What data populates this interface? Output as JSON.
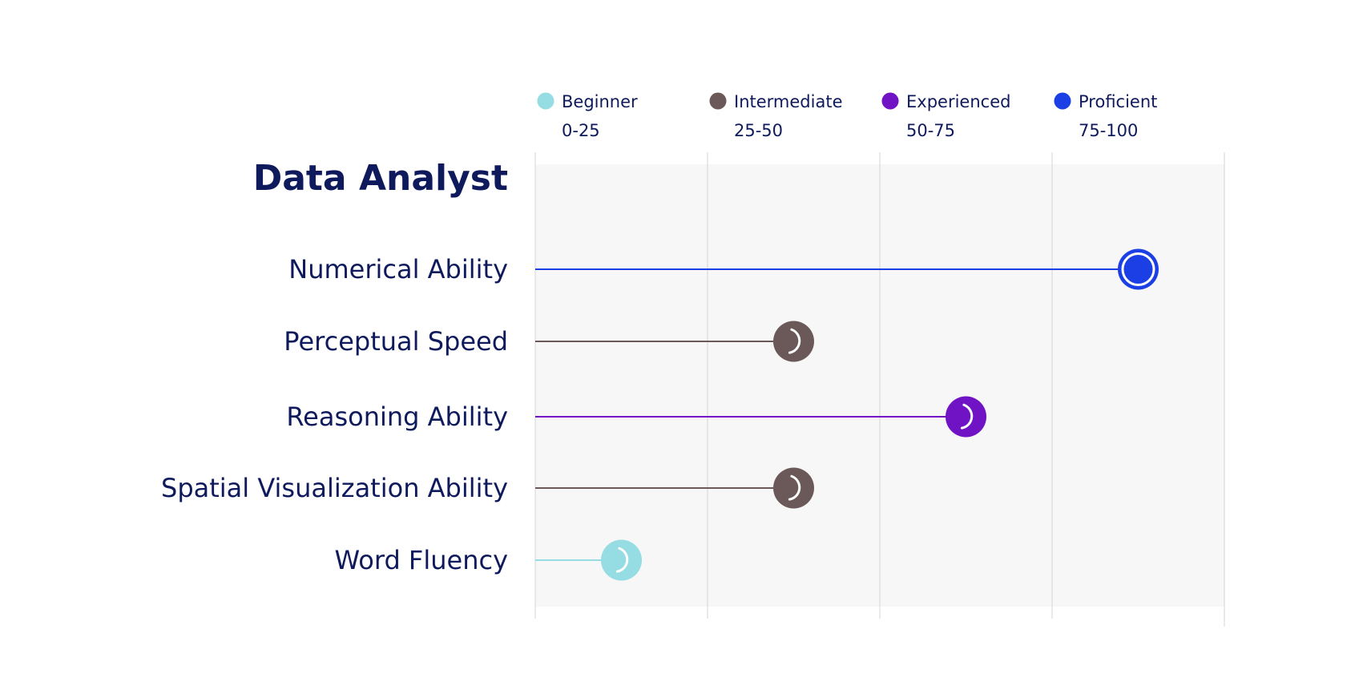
{
  "chart_data": {
    "type": "lollipop",
    "title": "Data Analyst",
    "xlim": [
      0,
      100
    ],
    "grid": true,
    "legend_placement": "top",
    "levels": [
      {
        "name": "Beginner",
        "range": "0-25",
        "color": "#96dce3"
      },
      {
        "name": "Intermediate",
        "range": "25-50",
        "color": "#6b5858"
      },
      {
        "name": "Experienced",
        "range": "50-75",
        "color": "#7013c4"
      },
      {
        "name": "Proficient",
        "range": "75-100",
        "color": "#1b3fe4"
      }
    ],
    "categories": [
      "Numerical Ability",
      "Perceptual Speed",
      "Reasoning Ability",
      "Spatial Visualization Ability",
      "Word Fluency"
    ],
    "values": [
      87.5,
      37.5,
      62.5,
      37.5,
      12.5
    ],
    "point_levels": [
      "Proficient",
      "Intermediate",
      "Experienced",
      "Intermediate",
      "Beginner"
    ]
  }
}
